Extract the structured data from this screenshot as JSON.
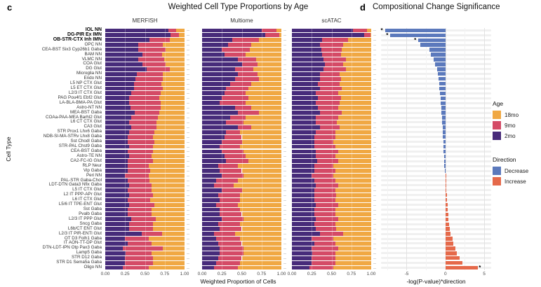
{
  "figure": {
    "panel_c_letter": "c",
    "panel_c_title": "Weighted Cell Type Proportions by Age",
    "panel_d_letter": "d",
    "panel_d_title": "Compositional Change Significance",
    "x_label_c": "Weighted Proportion of Cells",
    "x_label_d": "-log(P-value)*direction",
    "y_label": "Cell Type"
  },
  "colors": {
    "age_18mo": "#F0A843",
    "age_9mo": "#D44A66",
    "age_2mo": "#472B7A",
    "decrease": "#5B79BC",
    "increase": "#E5694A"
  },
  "legend": {
    "age": {
      "title": "Age",
      "items": [
        "18mo",
        "9mo",
        "2mo"
      ]
    },
    "direction": {
      "title": "Direction",
      "items": [
        "Decrease",
        "Increase"
      ]
    }
  },
  "chart_data": [
    {
      "type": "bar",
      "subtype": "horizontal-stacked-proportion",
      "title": "Weighted Cell Type Proportions by Age",
      "xlabel": "Weighted Proportion of Cells",
      "ylabel": "Cell Type",
      "xlim": [
        0,
        1
      ],
      "x_ticks": [
        "0.00",
        "0.25",
        "0.50",
        "0.75",
        "1.00"
      ],
      "facets": [
        "MERFISH",
        "Multiome",
        "scATAC"
      ],
      "series_keys": [
        "2mo",
        "9mo",
        "18mo"
      ],
      "bold_count": 3,
      "categories": [
        "IOL NN",
        "DG-PIR Ex IMN",
        "OB-STR-CTX Inh IMN",
        "OPC NN",
        "CEA-BST Six3 Cyp26b1 Gaba",
        "BAM NN",
        "VLMC NN",
        "COA Glut",
        "DG Glut",
        "Microglia NN",
        "Endo NN",
        "L5 NP CTX Glut",
        "L5 ET CTX Glut",
        "L2/3 IT CTX Glut",
        "PAG Pou4f1 Ebf2 Glut",
        "LA-BLA-BMA-PA Glut",
        "Astro-NT NN",
        "MEA-BST Gaba",
        "COAa-PAA-MEA Barhl2 Glut",
        "L6 CT CTX Glut",
        "CA3 Glut",
        "STR Prox1 Lhx6 Gaba",
        "NDB-SI-MA-STRv Lhx8 Gaba",
        "Sst Chodl Gaba",
        "STR-PAL Chst9 Gaba",
        "CEA-BST Gaba",
        "Astro-TE NN",
        "CA2-FC-IG Glut",
        "RLP Neur",
        "Vip Gaba",
        "Peri NN",
        "PAL-STR Gaba-Chol",
        "LDT-DTN Gata3 Nfix Gaba",
        "L5 IT CTX Glut",
        "L2 IT PPP-APr Glut",
        "L6 IT CTX Glut",
        "L5/6 IT TPE-ENT Glut",
        "Sst Gaba",
        "Pvalb Gaba",
        "L2/3 IT PPP Glut",
        "Sncg Gaba",
        "L6b/CT ENT Glut",
        "L2/3 IT PIR-ENTl Glut",
        "OT D3 Folh1 Gaba",
        "IT AON-TT-DP Glut",
        "DTN-LDT-IPN Otp Pax3 Gaba",
        "Lamp5 Gaba",
        "STR D12 Gaba",
        "STR D1 Sema5a Gaba",
        "Oligo NN"
      ],
      "values": {
        "MERFISH": [
          [
            0.8,
            0.09,
            0.11
          ],
          [
            0.82,
            0.11,
            0.07
          ],
          [
            0.56,
            0.25,
            0.19
          ],
          [
            0.42,
            0.31,
            0.27
          ],
          [
            0.42,
            0.34,
            0.24
          ],
          [
            0.47,
            0.25,
            0.28
          ],
          [
            0.42,
            0.32,
            0.26
          ],
          [
            0.47,
            0.29,
            0.24
          ],
          [
            0.52,
            0.29,
            0.19
          ],
          [
            0.4,
            0.33,
            0.27
          ],
          [
            0.38,
            0.35,
            0.27
          ],
          [
            0.36,
            0.35,
            0.29
          ],
          [
            0.36,
            0.37,
            0.27
          ],
          [
            0.33,
            0.37,
            0.3
          ],
          [
            0.3,
            0.38,
            0.32
          ],
          [
            0.3,
            0.4,
            0.3
          ],
          [
            0.32,
            0.38,
            0.3
          ],
          [
            0.37,
            0.31,
            0.32
          ],
          [
            0.33,
            0.33,
            0.34
          ],
          [
            0.3,
            0.35,
            0.35
          ],
          [
            0.33,
            0.32,
            0.35
          ],
          [
            0.3,
            0.32,
            0.38
          ],
          [
            0.28,
            0.32,
            0.4
          ],
          [
            0.28,
            0.34,
            0.38
          ],
          [
            0.3,
            0.3,
            0.4
          ],
          [
            0.28,
            0.32,
            0.4
          ],
          [
            0.3,
            0.28,
            0.42
          ],
          [
            0.28,
            0.32,
            0.4
          ],
          [
            0.28,
            0.27,
            0.45
          ],
          [
            0.28,
            0.29,
            0.43
          ],
          [
            0.25,
            0.3,
            0.45
          ],
          [
            0.28,
            0.28,
            0.44
          ],
          [
            0.3,
            0.28,
            0.42
          ],
          [
            0.28,
            0.3,
            0.42
          ],
          [
            0.3,
            0.3,
            0.4
          ],
          [
            0.28,
            0.29,
            0.43
          ],
          [
            0.3,
            0.32,
            0.38
          ],
          [
            0.28,
            0.3,
            0.42
          ],
          [
            0.28,
            0.3,
            0.42
          ],
          [
            0.33,
            0.31,
            0.36
          ],
          [
            0.3,
            0.3,
            0.4
          ],
          [
            0.3,
            0.3,
            0.4
          ],
          [
            0.46,
            0.26,
            0.28
          ],
          [
            0.25,
            0.3,
            0.45
          ],
          [
            0.28,
            0.3,
            0.42
          ],
          [
            0.22,
            0.51,
            0.27
          ],
          [
            0.26,
            0.32,
            0.42
          ],
          [
            0.25,
            0.35,
            0.4
          ],
          [
            0.25,
            0.35,
            0.4
          ],
          [
            0.22,
            0.33,
            0.45
          ]
        ],
        "Multiome": [
          [
            0.75,
            0.19,
            0.06
          ],
          [
            0.8,
            0.17,
            0.03
          ],
          [
            0.38,
            0.34,
            0.28
          ],
          [
            0.33,
            0.29,
            0.38
          ],
          [
            0.25,
            0.35,
            0.4
          ],
          [
            0.28,
            0.27,
            0.45
          ],
          [
            0.45,
            0.23,
            0.32
          ],
          [
            0.5,
            0.2,
            0.3
          ],
          [
            0.42,
            0.23,
            0.35
          ],
          [
            0.45,
            0.25,
            0.3
          ],
          [
            0.42,
            0.3,
            0.28
          ],
          [
            0.35,
            0.27,
            0.38
          ],
          [
            0.3,
            0.28,
            0.42
          ],
          [
            0.28,
            0.27,
            0.45
          ],
          [
            0.25,
            0.33,
            0.42
          ],
          [
            0.22,
            0.33,
            0.45
          ],
          [
            0.42,
            0.2,
            0.38
          ],
          [
            0.45,
            0.27,
            0.28
          ],
          [
            0.35,
            0.2,
            0.45
          ],
          [
            0.3,
            0.22,
            0.48
          ],
          [
            0.45,
            0.17,
            0.38
          ],
          [
            0.3,
            0.18,
            0.52
          ],
          [
            0.28,
            0.22,
            0.5
          ],
          [
            0.25,
            0.25,
            0.5
          ],
          [
            0.22,
            0.26,
            0.52
          ],
          [
            0.25,
            0.27,
            0.48
          ],
          [
            0.28,
            0.27,
            0.45
          ],
          [
            0.3,
            0.28,
            0.42
          ],
          [
            0.2,
            0.25,
            0.55
          ],
          [
            0.22,
            0.28,
            0.5
          ],
          [
            0.25,
            0.27,
            0.48
          ],
          [
            0.18,
            0.27,
            0.55
          ],
          [
            0.15,
            0.25,
            0.6
          ],
          [
            0.25,
            0.25,
            0.5
          ],
          [
            0.2,
            0.28,
            0.52
          ],
          [
            0.22,
            0.26,
            0.52
          ],
          [
            0.18,
            0.27,
            0.55
          ],
          [
            0.22,
            0.26,
            0.52
          ],
          [
            0.22,
            0.28,
            0.5
          ],
          [
            0.25,
            0.27,
            0.48
          ],
          [
            0.2,
            0.28,
            0.52
          ],
          [
            0.22,
            0.28,
            0.5
          ],
          [
            0.15,
            0.27,
            0.58
          ],
          [
            0.18,
            0.3,
            0.52
          ],
          [
            0.2,
            0.3,
            0.5
          ],
          [
            0.22,
            0.3,
            0.48
          ],
          [
            0.22,
            0.3,
            0.48
          ],
          [
            0.2,
            0.3,
            0.5
          ],
          [
            0.18,
            0.3,
            0.52
          ],
          [
            0.15,
            0.3,
            0.55
          ]
        ],
        "scATAC": [
          [
            0.77,
            0.18,
            0.05
          ],
          [
            0.91,
            0.08,
            0.01
          ],
          [
            0.38,
            0.33,
            0.29
          ],
          [
            0.35,
            0.3,
            0.35
          ],
          [
            0.37,
            0.26,
            0.37
          ],
          [
            0.38,
            0.24,
            0.38
          ],
          [
            0.4,
            0.28,
            0.32
          ],
          [
            0.42,
            0.23,
            0.35
          ],
          [
            0.4,
            0.28,
            0.32
          ],
          [
            0.35,
            0.25,
            0.4
          ],
          [
            0.35,
            0.27,
            0.38
          ],
          [
            0.33,
            0.27,
            0.4
          ],
          [
            0.35,
            0.28,
            0.37
          ],
          [
            0.3,
            0.28,
            0.42
          ],
          [
            0.33,
            0.29,
            0.38
          ],
          [
            0.3,
            0.3,
            0.4
          ],
          [
            0.33,
            0.25,
            0.42
          ],
          [
            0.35,
            0.28,
            0.37
          ],
          [
            0.3,
            0.28,
            0.42
          ],
          [
            0.3,
            0.27,
            0.43
          ],
          [
            0.35,
            0.25,
            0.4
          ],
          [
            0.3,
            0.25,
            0.45
          ],
          [
            0.28,
            0.27,
            0.45
          ],
          [
            0.28,
            0.24,
            0.48
          ],
          [
            0.28,
            0.27,
            0.45
          ],
          [
            0.3,
            0.28,
            0.42
          ],
          [
            0.3,
            0.25,
            0.45
          ],
          [
            0.32,
            0.26,
            0.42
          ],
          [
            0.28,
            0.24,
            0.48
          ],
          [
            0.28,
            0.27,
            0.45
          ],
          [
            0.25,
            0.27,
            0.48
          ],
          [
            0.28,
            0.27,
            0.45
          ],
          [
            0.3,
            0.28,
            0.42
          ],
          [
            0.28,
            0.27,
            0.45
          ],
          [
            0.28,
            0.28,
            0.44
          ],
          [
            0.28,
            0.27,
            0.45
          ],
          [
            0.3,
            0.28,
            0.42
          ],
          [
            0.28,
            0.27,
            0.45
          ],
          [
            0.28,
            0.27,
            0.45
          ],
          [
            0.3,
            0.28,
            0.42
          ],
          [
            0.28,
            0.27,
            0.45
          ],
          [
            0.3,
            0.26,
            0.44
          ],
          [
            0.35,
            0.3,
            0.35
          ],
          [
            0.25,
            0.27,
            0.48
          ],
          [
            0.28,
            0.27,
            0.45
          ],
          [
            0.25,
            0.33,
            0.42
          ],
          [
            0.26,
            0.29,
            0.45
          ],
          [
            0.25,
            0.3,
            0.45
          ],
          [
            0.25,
            0.3,
            0.45
          ],
          [
            0.22,
            0.3,
            0.48
          ]
        ]
      }
    },
    {
      "type": "bar",
      "subtype": "horizontal-diverging",
      "title": "Compositional Change Significance",
      "xlabel": "-log(P-value)*direction",
      "categories_same_as_panel_c": true,
      "xlim": [
        -8.3,
        5.9
      ],
      "x_ticks": [
        -5,
        0,
        5
      ],
      "grid_major": [
        -5,
        0,
        5
      ],
      "grid_minor": [
        -7.5,
        -2.5,
        2.5
      ],
      "direction_rule": "negative = Decrease (blue), positive = Increase (red)",
      "values": [
        -7.8,
        -7.1,
        -3.5,
        -3.2,
        -2.1,
        -1.85,
        -1.5,
        -1.3,
        -1.1,
        -0.95,
        -0.85,
        -0.8,
        -0.75,
        -0.7,
        -0.65,
        -0.6,
        -0.55,
        -0.5,
        -0.45,
        -0.42,
        -0.38,
        -0.35,
        -0.32,
        -0.28,
        -0.25,
        -0.22,
        -0.18,
        -0.15,
        -0.12,
        -0.08,
        0.05,
        0.08,
        0.1,
        0.15,
        0.18,
        0.22,
        0.28,
        0.32,
        0.35,
        0.4,
        0.45,
        0.55,
        0.65,
        0.9,
        1.0,
        1.25,
        1.5,
        1.8,
        2.2,
        4.2
      ],
      "significant": [
        true,
        true,
        true,
        false,
        false,
        false,
        false,
        false,
        false,
        false,
        false,
        false,
        false,
        false,
        false,
        false,
        false,
        false,
        false,
        false,
        false,
        false,
        false,
        false,
        false,
        false,
        false,
        false,
        false,
        false,
        false,
        false,
        false,
        false,
        false,
        false,
        false,
        false,
        false,
        false,
        false,
        false,
        false,
        false,
        false,
        false,
        false,
        false,
        false,
        true
      ]
    }
  ]
}
